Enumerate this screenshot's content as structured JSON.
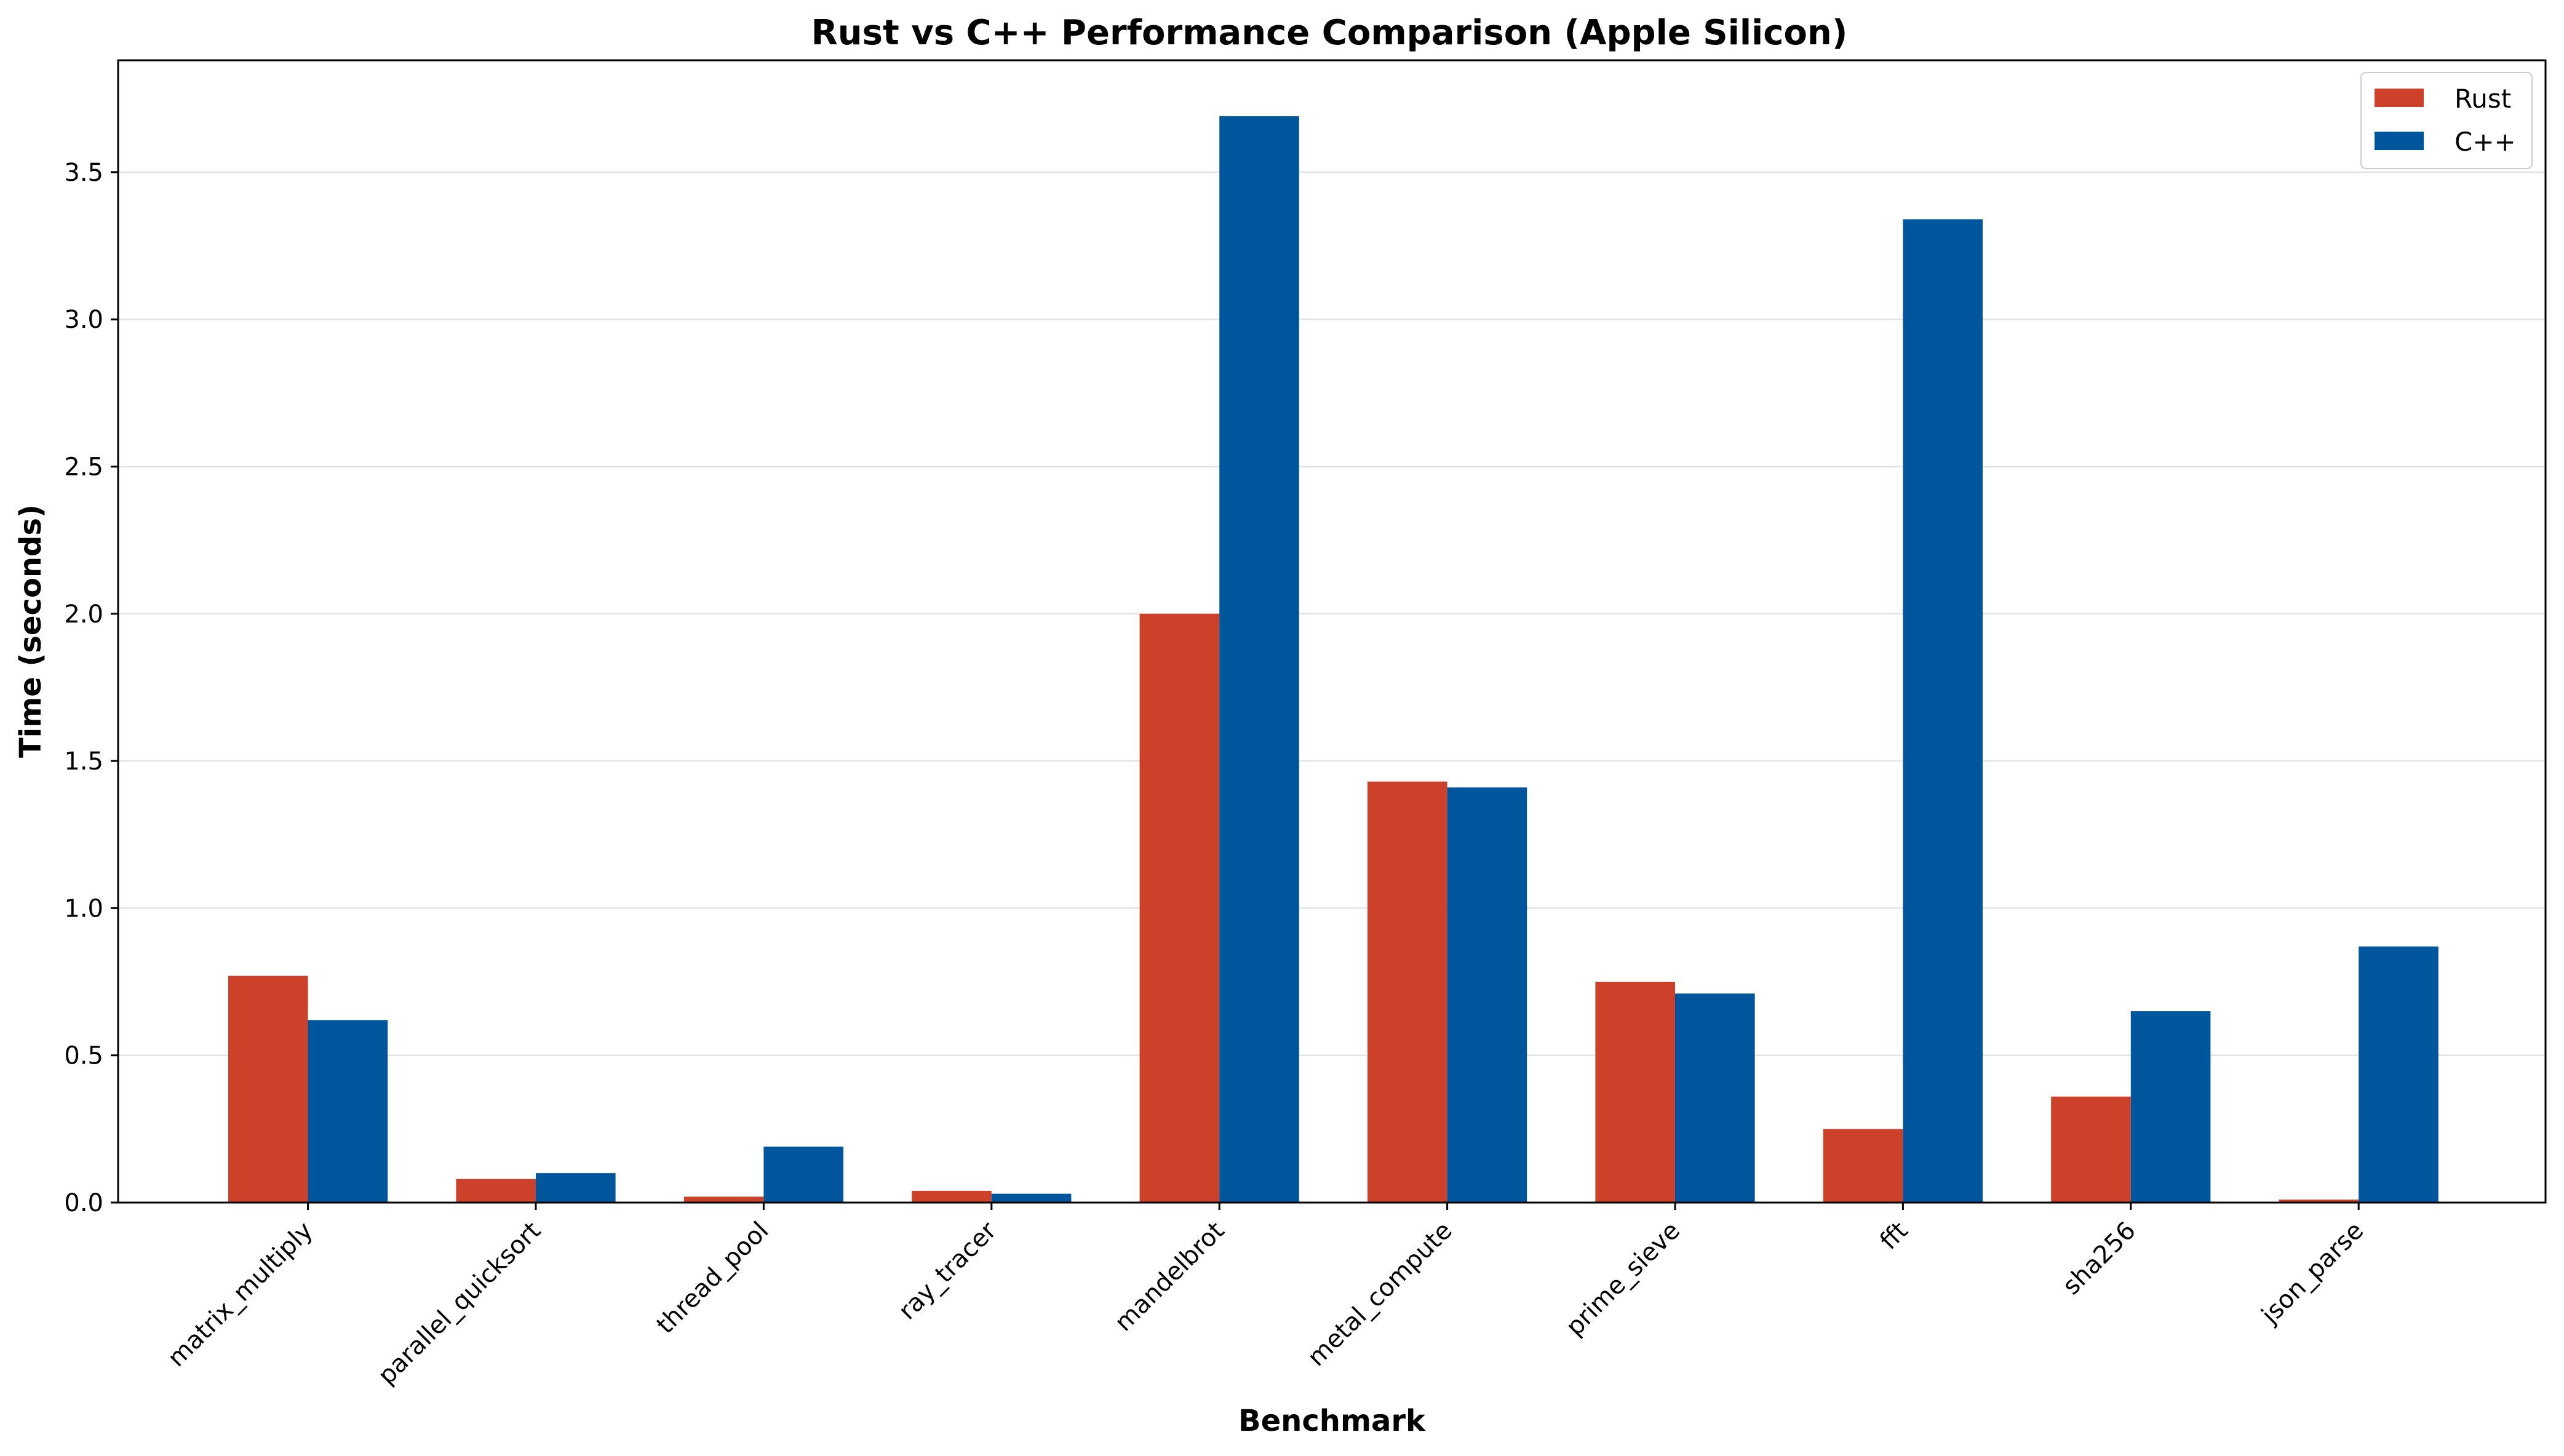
{
  "chart_data": {
    "type": "bar",
    "title": "Rust vs C++ Performance Comparison (Apple Silicon)",
    "xlabel": "Benchmark",
    "ylabel": "Time (seconds)",
    "categories": [
      "matrix_multiply",
      "parallel_quicksort",
      "thread_pool",
      "ray_tracer",
      "mandelbrot",
      "metal_compute",
      "prime_sieve",
      "fft",
      "sha256",
      "json_parse"
    ],
    "series": [
      {
        "name": "Rust",
        "color": "#cd412b",
        "values": [
          0.77,
          0.08,
          0.02,
          0.04,
          2.0,
          1.43,
          0.75,
          0.25,
          0.36,
          0.01
        ]
      },
      {
        "name": "C++",
        "color": "#00569c",
        "values": [
          0.62,
          0.1,
          0.19,
          0.03,
          3.69,
          1.41,
          0.71,
          3.34,
          0.65,
          0.87
        ]
      }
    ],
    "ylim": [
      0,
      3.88
    ],
    "yticks": [
      "0.0",
      "0.5",
      "1.0",
      "1.5",
      "2.0",
      "2.5",
      "3.0",
      "3.5"
    ],
    "grid": "y",
    "legend": "top-right"
  }
}
